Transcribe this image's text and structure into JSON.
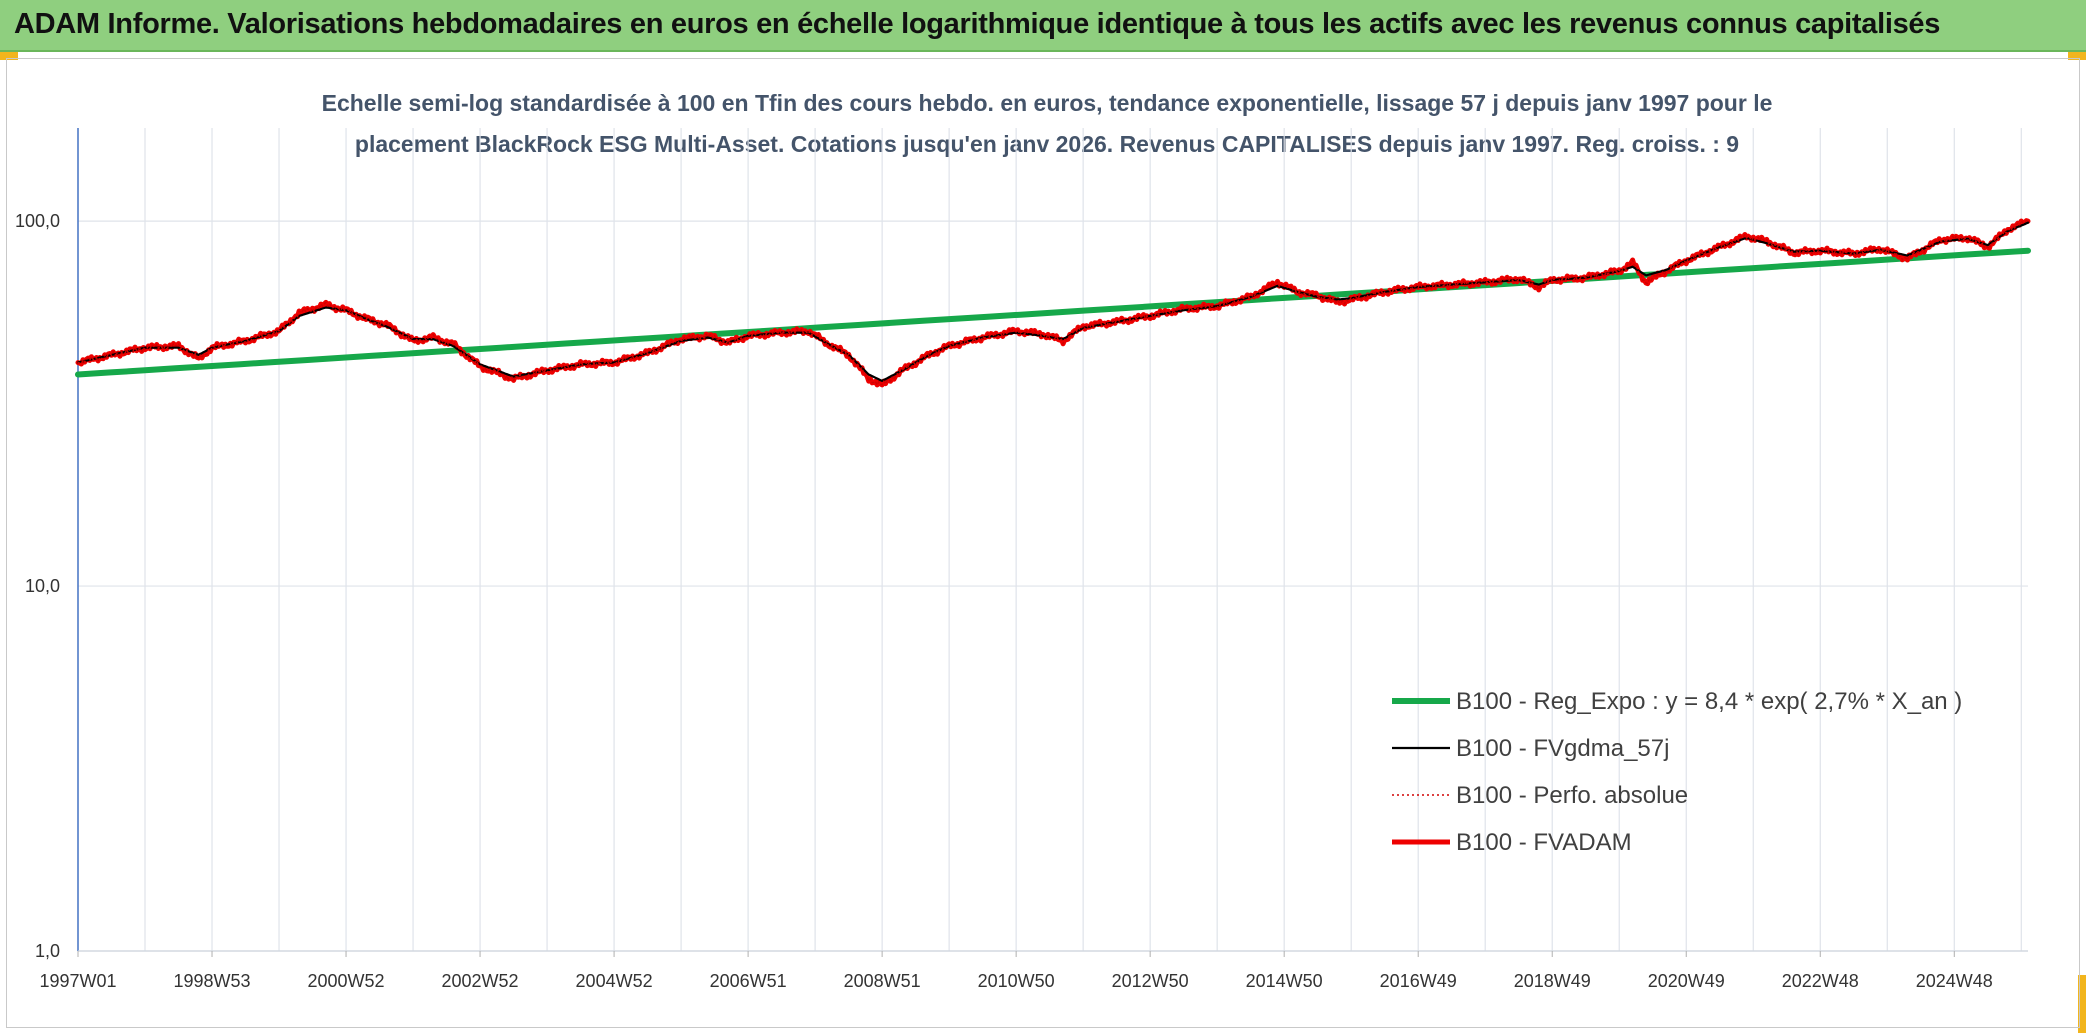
{
  "header": {
    "title": "ADAM Informe. Valorisations hebdomadaires en euros en échelle logarithmique identique à tous les actifs avec les revenus connus capitalisés"
  },
  "colors": {
    "header_bg": "#8fcf7f",
    "accent": "#f2b51d",
    "regression": "#16a84a",
    "fvgdma": "#000000",
    "perfo": "#d00000",
    "fvadam": "#ee0000"
  },
  "chart_data": {
    "type": "line",
    "title_line1": "Echelle semi-log standardisée à 100 en Tfin des cours hebdo. en euros, tendance exponentielle, lissage 57 j depuis janv 1997 pour le",
    "title_line2": "placement BlackRock ESG Multi-Asset. Cotations jusqu'en janv 2026. Revenus CAPITALISES depuis janv 1997. Reg. croiss. : 9",
    "y_scale": "log",
    "ylim": [
      1,
      180
    ],
    "y_ticks": [
      {
        "value": 1,
        "label": "1,0"
      },
      {
        "value": 10,
        "label": "10,0"
      },
      {
        "value": 100,
        "label": "100,0"
      }
    ],
    "xlim": [
      1997.0,
      2026.1
    ],
    "x_ticks": [
      {
        "value": 1997.0,
        "label": "1997W01"
      },
      {
        "value": 1999.0,
        "label": "1998W53"
      },
      {
        "value": 2001.0,
        "label": "2000W52"
      },
      {
        "value": 2003.0,
        "label": "2002W52"
      },
      {
        "value": 2005.0,
        "label": "2004W52"
      },
      {
        "value": 2007.0,
        "label": "2006W51"
      },
      {
        "value": 2009.0,
        "label": "2008W51"
      },
      {
        "value": 2011.0,
        "label": "2010W50"
      },
      {
        "value": 2013.0,
        "label": "2012W50"
      },
      {
        "value": 2015.0,
        "label": "2014W50"
      },
      {
        "value": 2017.0,
        "label": "2016W49"
      },
      {
        "value": 2019.0,
        "label": "2018W49"
      },
      {
        "value": 2021.0,
        "label": "2020W49"
      },
      {
        "value": 2023.0,
        "label": "2022W48"
      },
      {
        "value": 2025.0,
        "label": "2024W48"
      }
    ],
    "grid": "vertical-and-horizontal",
    "legend_position": "bottom-right",
    "legend": [
      {
        "label": "B100 - Reg_Expo : y = 8,4 * exp( 2,7% *  X_an )",
        "series": "reg"
      },
      {
        "label": "B100 - FVgdma_57j",
        "series": "fvgdma"
      },
      {
        "label": "B100 - Perfo. absolue",
        "series": "perfo"
      },
      {
        "label": "B100 - FVADAM",
        "series": "fvadam"
      }
    ],
    "series": [
      {
        "id": "reg",
        "name": "B100 - Reg_Expo : y = 8,4 * exp( 2,7% *  X_an )",
        "x": [
          1997.0,
          2026.1
        ],
        "values": [
          38,
          83
        ]
      },
      {
        "id": "fvadam",
        "name": "B100 - FVADAM",
        "x": [
          1997.0,
          1997.5,
          1998.0,
          1998.5,
          1998.8,
          1999.0,
          1999.5,
          2000.0,
          2000.3,
          2000.7,
          2001.0,
          2001.3,
          2001.6,
          2002.0,
          2002.3,
          2002.6,
          2003.0,
          2003.5,
          2004.0,
          2004.5,
          2005.0,
          2005.5,
          2006.0,
          2006.4,
          2006.7,
          2007.0,
          2007.5,
          2007.9,
          2008.2,
          2008.5,
          2008.8,
          2009.0,
          2009.3,
          2009.7,
          2010.0,
          2010.5,
          2011.0,
          2011.4,
          2011.7,
          2012.0,
          2012.5,
          2013.0,
          2013.5,
          2014.0,
          2014.5,
          2014.9,
          2015.2,
          2015.5,
          2015.8,
          2016.0,
          2016.5,
          2017.0,
          2017.5,
          2018.0,
          2018.5,
          2018.8,
          2019.0,
          2019.5,
          2020.0,
          2020.2,
          2020.4,
          2020.7,
          2021.0,
          2021.5,
          2021.9,
          2022.2,
          2022.6,
          2023.0,
          2023.5,
          2023.9,
          2024.3,
          2024.8,
          2025.2,
          2025.5,
          2025.8,
          2026.1
        ],
        "values": [
          41,
          43,
          45,
          45.5,
          42,
          45,
          47,
          50,
          56,
          59,
          57,
          54,
          52,
          47,
          48,
          46,
          40,
          37,
          39,
          40.5,
          41,
          43.5,
          47.5,
          48.5,
          46.5,
          48.5,
          49.5,
          50,
          46,
          43,
          37,
          35.5,
          39,
          43,
          45.5,
          48,
          50,
          49,
          47,
          51.5,
          53,
          55,
          57.5,
          58.5,
          62,
          68,
          64,
          62.5,
          60,
          61,
          64,
          66,
          67,
          68,
          69.5,
          66,
          69,
          70,
          73,
          77,
          68,
          73,
          78,
          85,
          91,
          88,
          82,
          83,
          81.5,
          84,
          79,
          89,
          90,
          85,
          95,
          100
        ]
      },
      {
        "id": "fvgdma",
        "name": "B100 - FVgdma_57j",
        "x": [
          1997.0,
          1997.5,
          1998.0,
          1998.5,
          1998.8,
          1999.0,
          1999.5,
          2000.0,
          2000.3,
          2000.7,
          2001.0,
          2001.3,
          2001.6,
          2002.0,
          2002.3,
          2002.6,
          2003.0,
          2003.5,
          2004.0,
          2004.5,
          2005.0,
          2005.5,
          2006.0,
          2006.4,
          2006.7,
          2007.0,
          2007.5,
          2007.9,
          2008.2,
          2008.5,
          2008.8,
          2009.0,
          2009.3,
          2009.7,
          2010.0,
          2010.5,
          2011.0,
          2011.4,
          2011.7,
          2012.0,
          2012.5,
          2013.0,
          2013.5,
          2014.0,
          2014.5,
          2014.9,
          2015.2,
          2015.5,
          2015.8,
          2016.0,
          2016.5,
          2017.0,
          2017.5,
          2018.0,
          2018.5,
          2018.8,
          2019.0,
          2019.5,
          2020.0,
          2020.2,
          2020.4,
          2020.7,
          2021.0,
          2021.5,
          2021.9,
          2022.2,
          2022.6,
          2023.0,
          2023.5,
          2023.9,
          2024.3,
          2024.8,
          2025.2,
          2025.5,
          2025.8,
          2026.1
        ],
        "values": [
          41,
          43,
          45,
          45,
          43,
          45,
          47,
          50,
          55,
          58,
          57,
          54,
          51.5,
          47.5,
          47.5,
          45.5,
          40.5,
          37.5,
          39,
          40.5,
          41,
          43.5,
          47,
          48,
          46.5,
          48.5,
          49.5,
          49.5,
          46,
          43,
          38,
          36.5,
          39,
          43,
          45.5,
          48,
          49.5,
          48.5,
          47.5,
          51,
          53,
          55,
          57,
          58.5,
          62,
          66.5,
          64,
          62,
          61,
          61.5,
          64,
          66,
          67,
          68,
          69,
          67,
          69,
          70,
          73,
          75,
          71,
          73.5,
          78,
          85,
          90,
          87,
          82.5,
          83,
          81.5,
          83.5,
          80.5,
          88,
          89.5,
          86,
          94,
          99
        ]
      },
      {
        "id": "perfo",
        "name": "B100 - Perfo. absolue",
        "x": [
          1997.0,
          1997.5,
          1998.0,
          1998.5,
          1998.8,
          1999.0,
          1999.5,
          2000.0,
          2000.3,
          2000.7,
          2001.0,
          2001.3,
          2001.6,
          2002.0,
          2002.3,
          2002.6,
          2003.0,
          2003.5,
          2004.0,
          2004.5,
          2005.0,
          2005.5,
          2006.0,
          2006.4,
          2006.7,
          2007.0,
          2007.5,
          2007.9,
          2008.2,
          2008.5,
          2008.8,
          2009.0,
          2009.3,
          2009.7,
          2010.0,
          2010.5,
          2011.0,
          2011.4,
          2011.7,
          2012.0,
          2012.5,
          2013.0,
          2013.5,
          2014.0,
          2014.5,
          2014.9,
          2015.2,
          2015.5,
          2015.8,
          2016.0,
          2016.5,
          2017.0,
          2017.5,
          2018.0,
          2018.5,
          2018.8,
          2019.0,
          2019.5,
          2020.0,
          2020.2,
          2020.4,
          2020.7,
          2021.0,
          2021.5,
          2021.9,
          2022.2,
          2022.6,
          2023.0,
          2023.5,
          2023.9,
          2024.3,
          2024.8,
          2025.2,
          2025.5,
          2025.8,
          2026.1
        ],
        "values": [
          41,
          43,
          45,
          45.5,
          42,
          45,
          47,
          50,
          56,
          59,
          57,
          54,
          52,
          47,
          48,
          46,
          40,
          37,
          39,
          40.5,
          41,
          43.5,
          47.5,
          48.5,
          46.5,
          48.5,
          49.5,
          50,
          46,
          43,
          37,
          35.5,
          39,
          43,
          45.5,
          48,
          50,
          49,
          47,
          51.5,
          53,
          55,
          57.5,
          58.5,
          62,
          68,
          64,
          62.5,
          60,
          61,
          64,
          66,
          67,
          68,
          69.5,
          66,
          69,
          70,
          73,
          77,
          68,
          73,
          78,
          85,
          91,
          88,
          82,
          83,
          81.5,
          84,
          79,
          89,
          90,
          85,
          95,
          100
        ]
      }
    ]
  }
}
